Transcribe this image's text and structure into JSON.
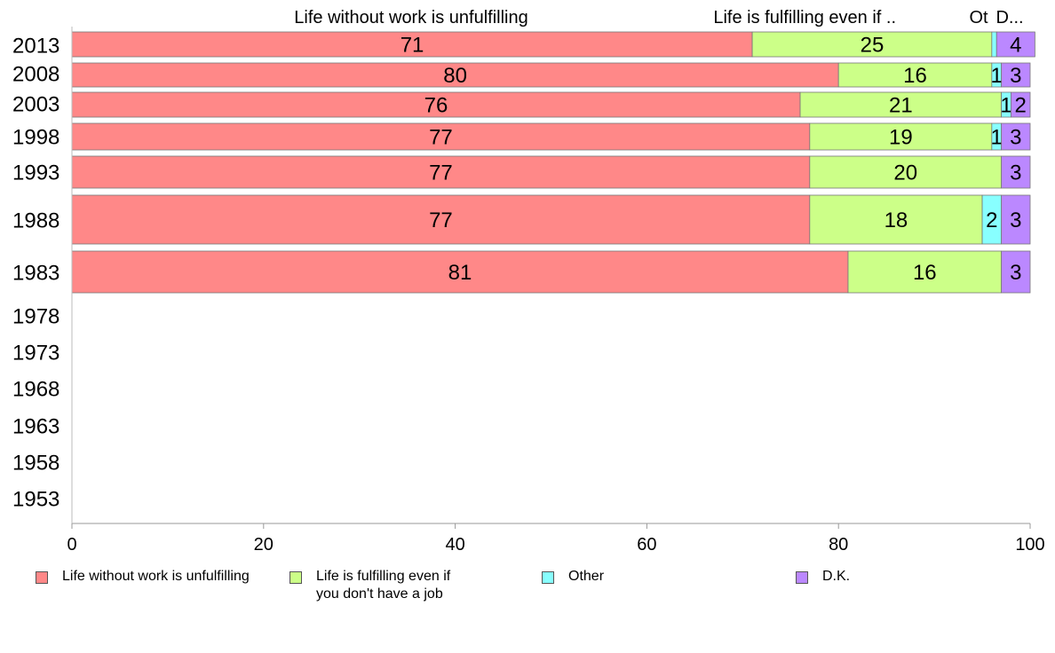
{
  "chart_data": {
    "type": "bar",
    "orientation": "horizontal",
    "stacked": true,
    "categories": [
      "2013",
      "2008",
      "2003",
      "1998",
      "1993",
      "1988",
      "1983",
      "1978",
      "1973",
      "1968",
      "1963",
      "1958",
      "1953"
    ],
    "series": [
      {
        "name": "Life without work is unfulfilling",
        "color": "#ff8888",
        "values": [
          71,
          80,
          76,
          77,
          77,
          77,
          81,
          null,
          null,
          null,
          null,
          null,
          null
        ]
      },
      {
        "name": "Life is fulfilling even if you don't have a job",
        "color": "#ccff88",
        "values": [
          25,
          16,
          21,
          19,
          20,
          18,
          16,
          null,
          null,
          null,
          null,
          null,
          null
        ]
      },
      {
        "name": "Other",
        "color": "#88ffff",
        "values": [
          0.5,
          1,
          1,
          1,
          0,
          2,
          0,
          null,
          null,
          null,
          null,
          null,
          null
        ]
      },
      {
        "name": "D.K.",
        "color": "#bb88ff",
        "values": [
          4,
          3,
          2,
          3,
          3,
          3,
          3,
          null,
          null,
          null,
          null,
          null,
          null
        ]
      }
    ],
    "data_labels": [
      [
        "71",
        "25",
        "",
        "4"
      ],
      [
        "80",
        "16",
        "1",
        "3"
      ],
      [
        "76",
        "21",
        "1",
        "2"
      ],
      [
        "77",
        "19",
        "1",
        "3"
      ],
      [
        "77",
        "20",
        "",
        "3"
      ],
      [
        "77",
        "18",
        "2",
        "3"
      ],
      [
        "81",
        "16",
        "",
        "3"
      ]
    ],
    "top_labels": [
      "Life without work is unfulfilling",
      "Life is fulfilling even if ..",
      "Ot",
      "D..."
    ],
    "xticks": [
      0,
      20,
      40,
      60,
      80,
      100
    ],
    "xlim": [
      0,
      100
    ],
    "grid": false,
    "legend_position": "bottom",
    "legend_labels": [
      "Life without work is unfulfilling",
      "Life is fulfilling even if\nyou don't have a job",
      "Other",
      "D.K."
    ]
  }
}
